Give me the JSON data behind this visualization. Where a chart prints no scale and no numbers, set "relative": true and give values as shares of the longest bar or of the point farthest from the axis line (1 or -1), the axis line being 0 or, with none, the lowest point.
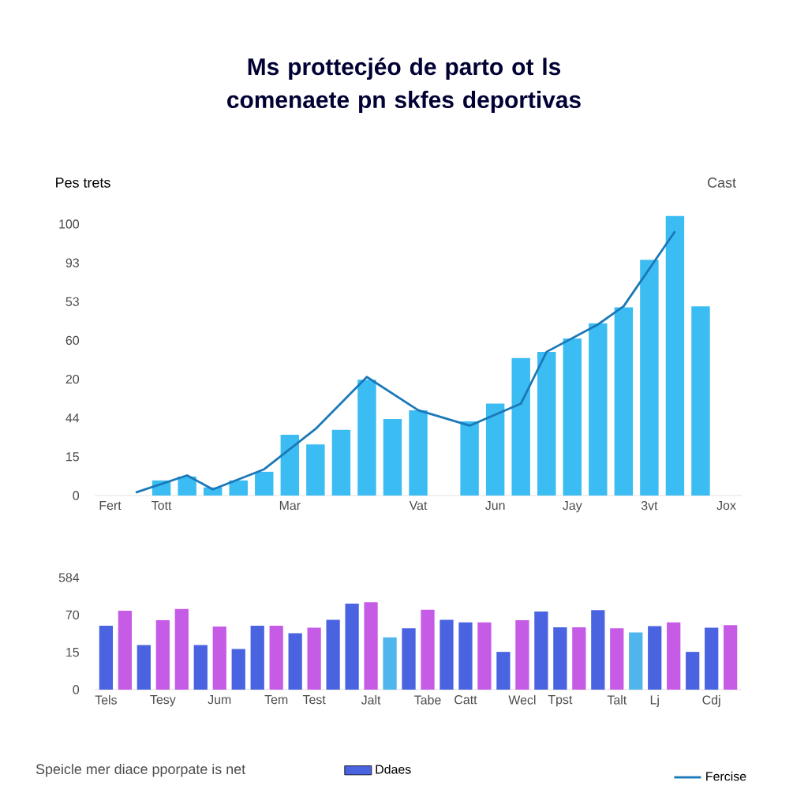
{
  "chart_data": [
    {
      "type": "bar",
      "title": "Ms prottecjéo de parto ot ls comenaete pn skfes deportivas",
      "ylabel": "Pes trets",
      "relative": true,
      "annotations": [
        "Cast",
        "100",
        "93",
        "53",
        "60",
        "20",
        "44",
        "15",
        "0"
      ],
      "categories": [
        "Fert",
        null,
        "Tott",
        null,
        null,
        null,
        null,
        "Mar",
        null,
        null,
        null,
        null,
        "Vat",
        null,
        null,
        "Jun",
        null,
        null,
        "Jay",
        null,
        null,
        "3vt",
        null,
        null,
        "Jox"
      ],
      "legend": "bottom right",
      "series": [
        {
          "type": "bar",
          "color": "#3bbcf2",
          "values": [
            null,
            null,
            0.054,
            0.068,
            0.029,
            0.054,
            0.085,
            0.217,
            0.183,
            0.235,
            0.414,
            0.274,
            0.305,
            null,
            0.265,
            0.329,
            0.492,
            0.514,
            0.562,
            0.616,
            0.673,
            0.843,
            1,
            0.677,
            null
          ]
        },
        {
          "type": "line",
          "name": "Fercise",
          "color": "#1b78b8",
          "values": [
            null,
            0.011,
            null,
            0.072,
            0.022,
            null,
            0.094,
            null,
            0.238,
            null,
            0.424,
            null,
            0.305,
            null,
            0.25,
            null,
            0.329,
            0.514,
            null,
            0.612,
            0.677,
            null,
            0.945,
            null,
            null
          ]
        }
      ]
    },
    {
      "type": "bar",
      "relative": true,
      "annotations": [
        "Speicle mer diace pporpate is net",
        "584",
        "70",
        "15",
        "0"
      ],
      "categories": [
        "Tels",
        null,
        null,
        "Tesy",
        null,
        null,
        "Jum",
        null,
        null,
        "Tem",
        null,
        "Test",
        null,
        null,
        "Jalt",
        null,
        null,
        "Tabe",
        null,
        "Catt",
        null,
        null,
        "Wecl",
        null,
        "Tpst",
        null,
        null,
        "Talt",
        null,
        "Lj",
        null,
        null,
        "Cdj",
        null
      ],
      "legend": "bottom",
      "series": [
        {
          "name": "Ddaes",
          "color": "#4a63e0",
          "values": [
            0.731,
            null,
            0.509,
            null,
            null,
            0.509,
            null,
            0.466,
            0.731,
            null,
            0.645,
            null,
            0.799,
            0.983,
            null,
            null,
            0.701,
            null,
            0.799,
            0.769,
            null,
            0.432,
            null,
            0.893,
            0.714,
            null,
            0.91,
            null,
            null,
            0.726,
            null,
            0.432,
            0.709,
            null
          ]
        },
        {
          "color": "#c65ce6",
          "values": [
            null,
            0.902,
            null,
            0.795,
            0.923,
            null,
            0.722,
            null,
            null,
            0.731,
            null,
            0.709,
            null,
            null,
            1,
            null,
            null,
            0.915,
            null,
            null,
            0.769,
            null,
            0.795,
            null,
            null,
            0.714,
            null,
            0.701,
            null,
            null,
            0.769,
            null,
            null,
            0.739
          ]
        },
        {
          "color": "#4fb5ec",
          "values": [
            null,
            null,
            null,
            null,
            null,
            null,
            null,
            null,
            null,
            null,
            null,
            null,
            null,
            null,
            null,
            0.598,
            null,
            null,
            null,
            null,
            null,
            null,
            null,
            null,
            null,
            null,
            null,
            null,
            0.654,
            null,
            null,
            null,
            null,
            null
          ]
        }
      ]
    }
  ]
}
